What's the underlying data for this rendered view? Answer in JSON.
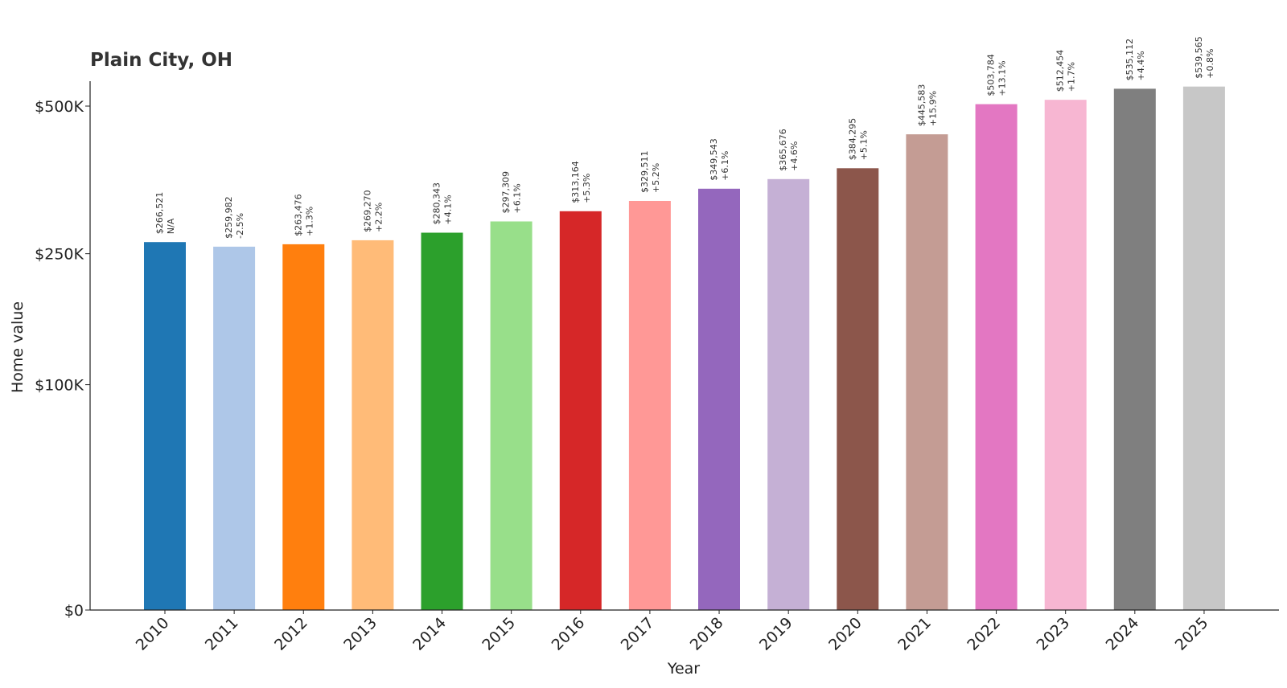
{
  "chart_data": {
    "type": "bar",
    "title": "Plain City, OH",
    "xlabel": "Year",
    "ylabel": "Home value",
    "ylim": [
      0,
      550000
    ],
    "y_scale": "sqrt",
    "yticks": [
      {
        "value": 0,
        "label": "$0"
      },
      {
        "value": 100000,
        "label": "$100K"
      },
      {
        "value": 250000,
        "label": "$250K"
      },
      {
        "value": 500000,
        "label": "$500K"
      }
    ],
    "grid": false,
    "categories": [
      "2010",
      "2011",
      "2012",
      "2013",
      "2014",
      "2015",
      "2016",
      "2017",
      "2018",
      "2019",
      "2020",
      "2021",
      "2022",
      "2023",
      "2024",
      "2025"
    ],
    "values": [
      266521,
      259982,
      263476,
      269270,
      280343,
      297309,
      313164,
      329511,
      349543,
      365676,
      384295,
      445583,
      503784,
      512454,
      535112,
      539565
    ],
    "value_labels": [
      "$266,521",
      "$259,982",
      "$263,476",
      "$269,270",
      "$280,343",
      "$297,309",
      "$313,164",
      "$329,511",
      "$349,543",
      "$365,676",
      "$384,295",
      "$445,583",
      "$503,784",
      "$512,454",
      "$535,112",
      "$539,565"
    ],
    "change_labels": [
      "N/A",
      "-2.5%",
      "+1.3%",
      "+2.2%",
      "+4.1%",
      "+6.1%",
      "+5.3%",
      "+5.2%",
      "+6.1%",
      "+4.6%",
      "+5.1%",
      "+15.9%",
      "+13.1%",
      "+1.7%",
      "+4.4%",
      "+0.8%"
    ],
    "colors": [
      "#1f77b4",
      "#aec7e8",
      "#ff7f0e",
      "#ffbb78",
      "#2ca02c",
      "#98df8a",
      "#d62728",
      "#ff9896",
      "#9467bd",
      "#c5b0d5",
      "#8c564b",
      "#c49c94",
      "#e377c2",
      "#f7b6d2",
      "#7f7f7f",
      "#c7c7c7"
    ]
  }
}
